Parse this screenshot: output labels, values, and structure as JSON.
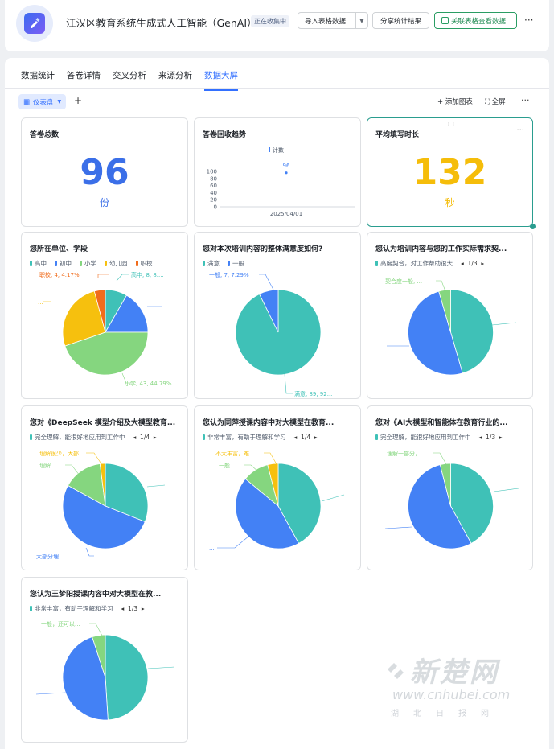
{
  "header": {
    "title": "江汉区教育系统生成式人工智能（GenAI）...",
    "status": "正在收集中",
    "import_label": "导入表格数据",
    "share_label": "分享统计结果",
    "link_label": "关联表格查看数据"
  },
  "tabs": [
    "数据统计",
    "答卷详情",
    "交叉分析",
    "来源分析",
    "数据大屏"
  ],
  "active_tab": 4,
  "toolbar": {
    "dashboard_label": "仪表盘",
    "add_chart_label": "添加图表",
    "fullscreen_label": "全屏"
  },
  "colors": {
    "accent": "#3370ff",
    "blue_num": "#3b6fe8",
    "yellow_num": "#f5bd0a",
    "teal": "#3fc1b7",
    "blue": "#4381f5",
    "green": "#85d67f",
    "yellow": "#f6c00e",
    "orange": "#f06c1c"
  },
  "cards": {
    "total": {
      "title": "答卷总数",
      "value": "96",
      "unit": "份"
    },
    "trend": {
      "title": "答卷回收趋势",
      "legend": "计数",
      "y_ticks": [
        "100",
        "80",
        "60",
        "40",
        "20",
        "0"
      ],
      "x_label": "2025/04/01",
      "point_label": "96"
    },
    "duration": {
      "title": "平均填写时长",
      "value": "132",
      "unit": "秒"
    },
    "pie1": {
      "title": "您所在单位、学段",
      "legend": [
        "高中",
        "初中",
        "小学",
        "幼儿园",
        "职校"
      ],
      "labels": [
        "职校, 4, 4.17%",
        "高中, 8, 8....",
        "小学, 43, 44.79%",
        "..."
      ]
    },
    "pie2": {
      "title": "您对本次培训内容的整体满意度如何?",
      "legend": [
        "满意",
        "一般"
      ],
      "labels": [
        "一般, 7, 7.29%",
        "满意, 89, 92..."
      ]
    },
    "pie3": {
      "title": "您认为培训内容与您的工作实际需求契...",
      "legend": [
        "高度契合，对工作帮助很大"
      ],
      "pager": "1/3",
      "labels": [
        "契合度一般, ..."
      ]
    },
    "pie4": {
      "title": "您对《DeepSeek 模型介绍及大模型教育...",
      "legend": [
        "完全理解，能很好地应用到工作中"
      ],
      "pager": "1/4",
      "labels": [
        "理解很少，大部...",
        "理解...",
        "大部分理..."
      ]
    },
    "pie5": {
      "title": "您认为同萍授课内容中对大模型在教育...",
      "legend": [
        "非常丰富，有助于理解和学习"
      ],
      "pager": "1/4",
      "labels": [
        "不太丰富，难...",
        "一般...",
        "..."
      ]
    },
    "pie6": {
      "title": "您对《AI大模型和智能体在教育行业的...",
      "legend": [
        "完全理解，能很好地应用到工作中"
      ],
      "pager": "1/3",
      "labels": [
        "理解一部分，..."
      ]
    },
    "pie7": {
      "title": "您认为王梦阳授课内容中对大模型在教...",
      "legend": [
        "非常丰富，有助于理解和学习"
      ],
      "pager": "1/3",
      "labels": [
        "一般，还可以..."
      ]
    }
  },
  "chart_data": [
    {
      "type": "line",
      "title": "答卷回收趋势",
      "series": [
        {
          "name": "计数",
          "values": [
            96
          ]
        }
      ],
      "x": [
        "2025/04/01"
      ],
      "ylim": [
        0,
        100
      ]
    },
    {
      "type": "pie",
      "title": "您所在单位、学段",
      "categories": [
        "高中",
        "初中",
        "小学",
        "幼儿园",
        "职校"
      ],
      "values": [
        8,
        16,
        43,
        25,
        4
      ],
      "colors": [
        "#3fc1b7",
        "#4381f5",
        "#85d67f",
        "#f6c00e",
        "#f06c1c"
      ]
    },
    {
      "type": "pie",
      "title": "您对本次培训内容的整体满意度如何?",
      "categories": [
        "满意",
        "一般"
      ],
      "values": [
        89,
        7
      ],
      "colors": [
        "#3fc1b7",
        "#4381f5"
      ]
    },
    {
      "type": "pie",
      "title": "您认为培训内容与您的工作实际需求契...",
      "values": [
        45.5,
        50,
        4.5
      ],
      "colors": [
        "#3fc1b7",
        "#4381f5",
        "#85d67f"
      ]
    },
    {
      "type": "pie",
      "title": "您对《DeepSeek 模型介绍及大模型教育...",
      "values": [
        31,
        52,
        15,
        2
      ],
      "colors": [
        "#3fc1b7",
        "#4381f5",
        "#85d67f",
        "#f6c00e"
      ]
    },
    {
      "type": "pie",
      "title": "您认为同萍授课内容中对大模型在教育...",
      "values": [
        42,
        44,
        10,
        4
      ],
      "colors": [
        "#3fc1b7",
        "#4381f5",
        "#85d67f",
        "#f6c00e"
      ]
    },
    {
      "type": "pie",
      "title": "您对《AI大模型和智能体在教育行业的...",
      "values": [
        42,
        54,
        4
      ],
      "colors": [
        "#3fc1b7",
        "#4381f5",
        "#85d67f"
      ]
    },
    {
      "type": "pie",
      "title": "您认为王梦阳授课内容中对大模型在教...",
      "values": [
        49,
        46,
        5
      ],
      "colors": [
        "#3fc1b7",
        "#4381f5",
        "#85d67f"
      ]
    }
  ],
  "watermark": {
    "brand": "新楚网",
    "url": "www.cnhubei.com",
    "sub": "湖北日报网"
  }
}
